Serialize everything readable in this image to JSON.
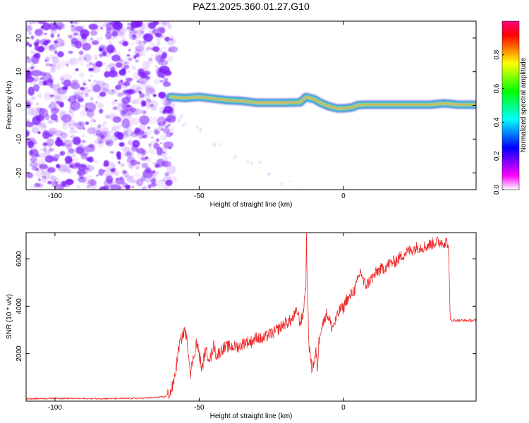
{
  "chart_data": [
    {
      "type": "heatmap",
      "title": "PAZ1.2025.360.01.27.G10",
      "xlabel": "Height of straight line (km)",
      "ylabel": "Frequency (Hz)",
      "xlim": [
        -110,
        46
      ],
      "ylim": [
        -25,
        25
      ],
      "xticks": [
        -100,
        -50,
        0
      ],
      "yticks": [
        -20,
        -10,
        0,
        10,
        20
      ],
      "noise_region_x": [
        -110,
        -60
      ],
      "signal_track": {
        "x": [
          -60,
          -55,
          -50,
          -45,
          -40,
          -35,
          -30,
          -25,
          -20,
          -15,
          -13,
          -10,
          -8,
          -5,
          -2,
          0,
          3,
          5,
          8,
          12,
          15,
          20,
          25,
          30,
          35,
          40,
          46
        ],
        "y": [
          2.5,
          2.2,
          2.5,
          2.0,
          1.5,
          1.3,
          0.8,
          0.8,
          0.8,
          0.9,
          2.5,
          1.8,
          0.8,
          -0.3,
          -0.9,
          -0.9,
          -0.6,
          0.1,
          0.2,
          0.2,
          0.2,
          0.2,
          0.2,
          0.2,
          0.6,
          0.2,
          0.2
        ]
      },
      "colorbar": {
        "label": "Normalized spectral amplitude",
        "range": [
          0,
          1
        ],
        "ticks": [
          "0.0",
          "0.2",
          "0.4",
          "0.6",
          "0.8"
        ],
        "colors": [
          "#ffffff",
          "#ff00ff",
          "#8000ff",
          "#0000ff",
          "#0080ff",
          "#00ffff",
          "#00ff80",
          "#00ff00",
          "#80ff00",
          "#ffff00",
          "#ff8000",
          "#ff0000",
          "#ff0080"
        ]
      },
      "colors": {
        "noise": "#7f1fff",
        "track_edge": "#1e1ec8",
        "track_mid": "#00ff80",
        "track_core": "#ff0000"
      }
    },
    {
      "type": "line",
      "xlabel": "Height of straight line (km)",
      "ylabel": "SNR (10 * v/v)",
      "xlim": [
        -110,
        46
      ],
      "ylim": [
        0,
        7100
      ],
      "xticks": [
        -100,
        -50,
        0
      ],
      "yticks": [
        2000,
        4000,
        6000
      ],
      "line_color": "#ee2a2a",
      "series": [
        {
          "name": "SNR",
          "x": [
            -110,
            -100,
            -90,
            -80,
            -70,
            -62,
            -60,
            -59,
            -58,
            -57,
            -56,
            -55,
            -54,
            -53,
            -52,
            -51,
            -50,
            -49,
            -48,
            -46,
            -45,
            -44,
            -42,
            -40,
            -38,
            -36,
            -34,
            -32,
            -30,
            -28,
            -26,
            -24,
            -22,
            -20,
            -18,
            -17,
            -16,
            -15,
            -14,
            -13,
            -12.8,
            -12.5,
            -12.2,
            -12,
            -11,
            -10,
            -9.5,
            -9,
            -8.5,
            -8,
            -7,
            -6,
            -5,
            -4,
            -3,
            -2,
            -1,
            0,
            1,
            2,
            3,
            4,
            5,
            6,
            7,
            8,
            10,
            12,
            14,
            16,
            18,
            20,
            22,
            24,
            26,
            28,
            30,
            32,
            34,
            36,
            36.5,
            37,
            38,
            40,
            42,
            44,
            46
          ],
          "values": [
            100,
            120,
            110,
            110,
            120,
            180,
            350,
            700,
            1400,
            2300,
            2700,
            3000,
            2400,
            1200,
            1800,
            2500,
            2000,
            1300,
            2100,
            1800,
            2400,
            1900,
            2200,
            2300,
            2300,
            2300,
            2500,
            2500,
            2700,
            2600,
            2800,
            2900,
            3100,
            3300,
            3400,
            3600,
            3800,
            3300,
            3600,
            5000,
            7100,
            4800,
            3300,
            2500,
            1400,
            1700,
            2100,
            1400,
            2500,
            3000,
            3300,
            3700,
            3500,
            3100,
            3300,
            3600,
            3900,
            3900,
            4300,
            4300,
            4600,
            4700,
            5100,
            5500,
            5000,
            4900,
            5200,
            5500,
            5600,
            5800,
            5900,
            6100,
            6300,
            6400,
            6500,
            6500,
            6600,
            6700,
            6700,
            6700,
            6300,
            3400,
            3400,
            3400,
            3400,
            3400,
            3400
          ]
        }
      ]
    }
  ]
}
